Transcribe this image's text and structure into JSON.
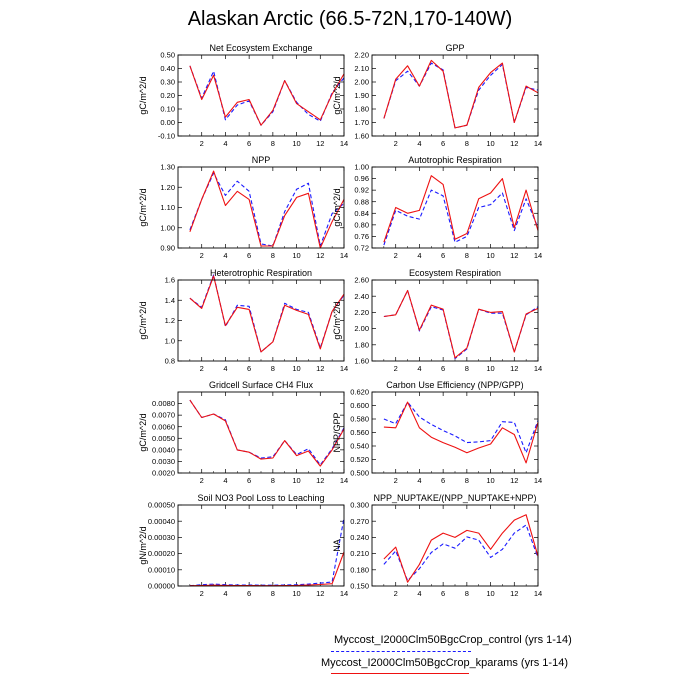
{
  "title": "Alaskan Arctic (66.5-72N,170-140W)",
  "colors": {
    "control": "#1a1aff",
    "kparams": "#ee1111"
  },
  "legend": {
    "control": "Myccost_I2000Clm50BgcCrop_control (yrs 1-14)",
    "kparams": "Myccost_I2000Clm50BgcCrop_kparams (yrs 1-14)"
  },
  "chart_data": [
    {
      "type": "line",
      "title": "Net Ecosystem Exchange",
      "ylabel": "gC/m^2/d",
      "xlim": [
        0,
        14
      ],
      "xticks": [
        2,
        4,
        6,
        8,
        10,
        12,
        14
      ],
      "ylim": [
        -0.1,
        0.5
      ],
      "yticks": [
        "-0.10",
        "0.00",
        "0.10",
        "0.20",
        "0.30",
        "0.40",
        "0.50"
      ],
      "x": [
        1,
        2,
        3,
        4,
        5,
        6,
        7,
        8,
        9,
        10,
        11,
        12,
        13,
        14
      ],
      "series": [
        {
          "values": [
            0.42,
            0.18,
            0.38,
            0.02,
            0.13,
            0.16,
            -0.02,
            0.08,
            0.31,
            0.15,
            0.06,
            0.01,
            0.22,
            0.33
          ],
          "style": "dashed"
        },
        {
          "values": [
            0.42,
            0.17,
            0.35,
            0.04,
            0.15,
            0.17,
            -0.02,
            0.09,
            0.31,
            0.14,
            0.08,
            0.02,
            0.21,
            0.36
          ],
          "style": "solid"
        }
      ]
    },
    {
      "type": "line",
      "title": "GPP",
      "ylabel": "gC/m^2/d",
      "xlim": [
        0,
        14
      ],
      "xticks": [
        2,
        4,
        6,
        8,
        10,
        12,
        14
      ],
      "ylim": [
        1.6,
        2.2
      ],
      "yticks": [
        "1.60",
        "1.70",
        "1.80",
        "1.90",
        "2.00",
        "2.10",
        "2.20"
      ],
      "x": [
        1,
        2,
        3,
        4,
        5,
        6,
        7,
        8,
        9,
        10,
        11,
        12,
        13,
        14
      ],
      "series": [
        {
          "values": [
            1.73,
            2.01,
            2.08,
            1.97,
            2.14,
            2.09,
            1.66,
            1.68,
            1.94,
            2.05,
            2.13,
            1.7,
            1.96,
            1.94
          ],
          "style": "dashed"
        },
        {
          "values": [
            1.73,
            2.02,
            2.12,
            1.97,
            2.16,
            2.08,
            1.66,
            1.68,
            1.96,
            2.07,
            2.14,
            1.7,
            1.97,
            1.92
          ],
          "style": "solid"
        }
      ]
    },
    {
      "type": "line",
      "title": "NPP",
      "ylabel": "gC/m^2/d",
      "xlim": [
        0,
        14
      ],
      "xticks": [
        2,
        4,
        6,
        8,
        10,
        12,
        14
      ],
      "ylim": [
        0.9,
        1.3
      ],
      "yticks": [
        "0.90",
        "1.00",
        "1.10",
        "1.20",
        "1.30"
      ],
      "x": [
        1,
        2,
        3,
        4,
        5,
        6,
        7,
        8,
        9,
        10,
        11,
        12,
        13,
        14
      ],
      "series": [
        {
          "values": [
            0.99,
            1.14,
            1.27,
            1.16,
            1.23,
            1.18,
            0.92,
            0.91,
            1.08,
            1.19,
            1.22,
            0.91,
            1.07,
            1.12
          ],
          "style": "dashed"
        },
        {
          "values": [
            0.98,
            1.14,
            1.28,
            1.11,
            1.18,
            1.14,
            0.91,
            0.91,
            1.06,
            1.15,
            1.17,
            0.9,
            1.03,
            1.14
          ],
          "style": "solid"
        }
      ]
    },
    {
      "type": "line",
      "title": "Autotrophic Respiration",
      "ylabel": "gC/m^2/d",
      "xlim": [
        0,
        14
      ],
      "xticks": [
        2,
        4,
        6,
        8,
        10,
        12,
        14
      ],
      "ylim": [
        0.72,
        1.0
      ],
      "yticks": [
        "0.72",
        "0.76",
        "0.80",
        "0.84",
        "0.88",
        "0.92",
        "0.96",
        "1.00"
      ],
      "x": [
        1,
        2,
        3,
        4,
        5,
        6,
        7,
        8,
        9,
        10,
        11,
        12,
        13,
        14
      ],
      "series": [
        {
          "values": [
            0.73,
            0.85,
            0.83,
            0.82,
            0.92,
            0.9,
            0.74,
            0.76,
            0.86,
            0.87,
            0.91,
            0.78,
            0.89,
            0.79
          ],
          "style": "dashed"
        },
        {
          "values": [
            0.74,
            0.86,
            0.84,
            0.85,
            0.97,
            0.94,
            0.75,
            0.77,
            0.89,
            0.91,
            0.96,
            0.79,
            0.92,
            0.78
          ],
          "style": "solid"
        }
      ]
    },
    {
      "type": "line",
      "title": "Heterotrophic Respiration",
      "ylabel": "gC/m^2/d",
      "xlim": [
        0,
        14
      ],
      "xticks": [
        2,
        4,
        6,
        8,
        10,
        12,
        14
      ],
      "ylim": [
        0.8,
        1.6
      ],
      "yticks": [
        "0.8",
        "1.0",
        "1.2",
        "1.4",
        "1.6"
      ],
      "x": [
        1,
        2,
        3,
        4,
        5,
        6,
        7,
        8,
        9,
        10,
        11,
        12,
        13,
        14
      ],
      "series": [
        {
          "values": [
            1.42,
            1.33,
            1.65,
            1.14,
            1.35,
            1.34,
            0.89,
            0.99,
            1.37,
            1.31,
            1.28,
            0.93,
            1.29,
            1.45
          ],
          "style": "dashed"
        },
        {
          "values": [
            1.42,
            1.32,
            1.64,
            1.15,
            1.33,
            1.31,
            0.89,
            0.99,
            1.35,
            1.3,
            1.26,
            0.92,
            1.29,
            1.46
          ],
          "style": "solid"
        }
      ]
    },
    {
      "type": "line",
      "title": "Ecosystem Respiration",
      "ylabel": "gC/m^2/d",
      "xlim": [
        0,
        14
      ],
      "xticks": [
        2,
        4,
        6,
        8,
        10,
        12,
        14
      ],
      "ylim": [
        1.6,
        2.6
      ],
      "yticks": [
        "1.60",
        "1.80",
        "2.00",
        "2.20",
        "2.40",
        "2.60"
      ],
      "x": [
        1,
        2,
        3,
        4,
        5,
        6,
        7,
        8,
        9,
        10,
        11,
        12,
        13,
        14
      ],
      "series": [
        {
          "values": [
            2.15,
            2.17,
            2.47,
            1.97,
            2.27,
            2.23,
            1.63,
            1.75,
            2.24,
            2.19,
            2.19,
            1.71,
            2.17,
            2.27
          ],
          "style": "dashed"
        },
        {
          "values": [
            2.15,
            2.17,
            2.47,
            1.98,
            2.29,
            2.24,
            1.64,
            1.76,
            2.24,
            2.2,
            2.21,
            1.71,
            2.18,
            2.25
          ],
          "style": "solid"
        }
      ]
    },
    {
      "type": "line",
      "title": "Gridcell Surface CH4 Flux",
      "ylabel": "gC/m^2/d",
      "xlim": [
        0,
        14
      ],
      "xticks": [
        2,
        4,
        6,
        8,
        10,
        12,
        14
      ],
      "ylim": [
        0.002,
        0.009
      ],
      "yticks": [
        "0.0020",
        "0.0030",
        "0.0040",
        "0.0050",
        "0.0060",
        "0.0070",
        "0.0080"
      ],
      "x": [
        1,
        2,
        3,
        4,
        5,
        6,
        7,
        8,
        9,
        10,
        11,
        12,
        13,
        14
      ],
      "series": [
        {
          "values": [
            0.0083,
            0.0068,
            0.0071,
            0.0066,
            0.004,
            0.0038,
            0.0033,
            0.0034,
            0.0048,
            0.0036,
            0.0041,
            0.0027,
            0.0041,
            0.0059
          ],
          "style": "dashed"
        },
        {
          "values": [
            0.0083,
            0.0068,
            0.0071,
            0.0065,
            0.004,
            0.0038,
            0.0032,
            0.0033,
            0.0048,
            0.0035,
            0.0039,
            0.0026,
            0.004,
            0.0058
          ],
          "style": "solid"
        }
      ]
    },
    {
      "type": "line",
      "title": "Carbon Use Efficiency (NPP/GPP)",
      "ylabel": "NPP/GPP",
      "xlim": [
        0,
        14
      ],
      "xticks": [
        2,
        4,
        6,
        8,
        10,
        12,
        14
      ],
      "ylim": [
        0.5,
        0.62
      ],
      "yticks": [
        "0.500",
        "0.520",
        "0.540",
        "0.560",
        "0.580",
        "0.600",
        "0.620"
      ],
      "x": [
        1,
        2,
        3,
        4,
        5,
        6,
        7,
        8,
        9,
        10,
        11,
        12,
        13,
        14
      ],
      "series": [
        {
          "values": [
            0.58,
            0.573,
            0.605,
            0.583,
            0.572,
            0.563,
            0.555,
            0.545,
            0.546,
            0.548,
            0.576,
            0.575,
            0.53,
            0.578
          ],
          "style": "dashed"
        },
        {
          "values": [
            0.568,
            0.567,
            0.605,
            0.567,
            0.553,
            0.545,
            0.538,
            0.53,
            0.537,
            0.543,
            0.567,
            0.557,
            0.515,
            0.575
          ],
          "style": "solid"
        }
      ]
    },
    {
      "type": "line",
      "title": "Soil NO3 Pool Loss to Leaching",
      "ylabel": "gN/m^2/d",
      "xlim": [
        0,
        14
      ],
      "xticks": [
        2,
        4,
        6,
        8,
        10,
        12,
        14
      ],
      "ylim": [
        0,
        0.0005
      ],
      "yticks": [
        "0.00000",
        "0.00010",
        "0.00020",
        "0.00030",
        "0.00040",
        "0.00050"
      ],
      "x": [
        1,
        2,
        3,
        4,
        5,
        6,
        7,
        8,
        9,
        10,
        11,
        12,
        13,
        14
      ],
      "series": [
        {
          "values": [
            2e-06,
            8e-06,
            1.2e-05,
            8e-06,
            6e-06,
            6e-06,
            5e-06,
            5e-06,
            6e-06,
            8e-06,
            1.2e-05,
            1.8e-05,
            2.5e-05,
            0.00042
          ],
          "style": "dashed"
        },
        {
          "values": [
            2e-06,
            3e-06,
            5e-06,
            4e-06,
            3e-06,
            3e-06,
            2e-06,
            2e-06,
            3e-06,
            4e-06,
            6e-06,
            9e-06,
            1.4e-05,
            0.00021
          ],
          "style": "solid"
        }
      ]
    },
    {
      "type": "line",
      "title": "NPP_NUPTAKE/(NPP_NUPTAKE+NPP)",
      "ylabel": "NA",
      "xlim": [
        0,
        14
      ],
      "xticks": [
        2,
        4,
        6,
        8,
        10,
        12,
        14
      ],
      "ylim": [
        0.15,
        0.3
      ],
      "yticks": [
        "0.150",
        "0.180",
        "0.210",
        "0.240",
        "0.270",
        "0.300"
      ],
      "x": [
        1,
        2,
        3,
        4,
        5,
        6,
        7,
        8,
        9,
        10,
        11,
        12,
        13,
        14
      ],
      "series": [
        {
          "values": [
            0.19,
            0.215,
            0.16,
            0.182,
            0.212,
            0.228,
            0.22,
            0.241,
            0.235,
            0.203,
            0.218,
            0.248,
            0.263,
            0.202
          ],
          "style": "dashed"
        },
        {
          "values": [
            0.2,
            0.222,
            0.157,
            0.19,
            0.235,
            0.248,
            0.24,
            0.253,
            0.248,
            0.218,
            0.248,
            0.272,
            0.282,
            0.205
          ],
          "style": "solid"
        }
      ]
    }
  ]
}
